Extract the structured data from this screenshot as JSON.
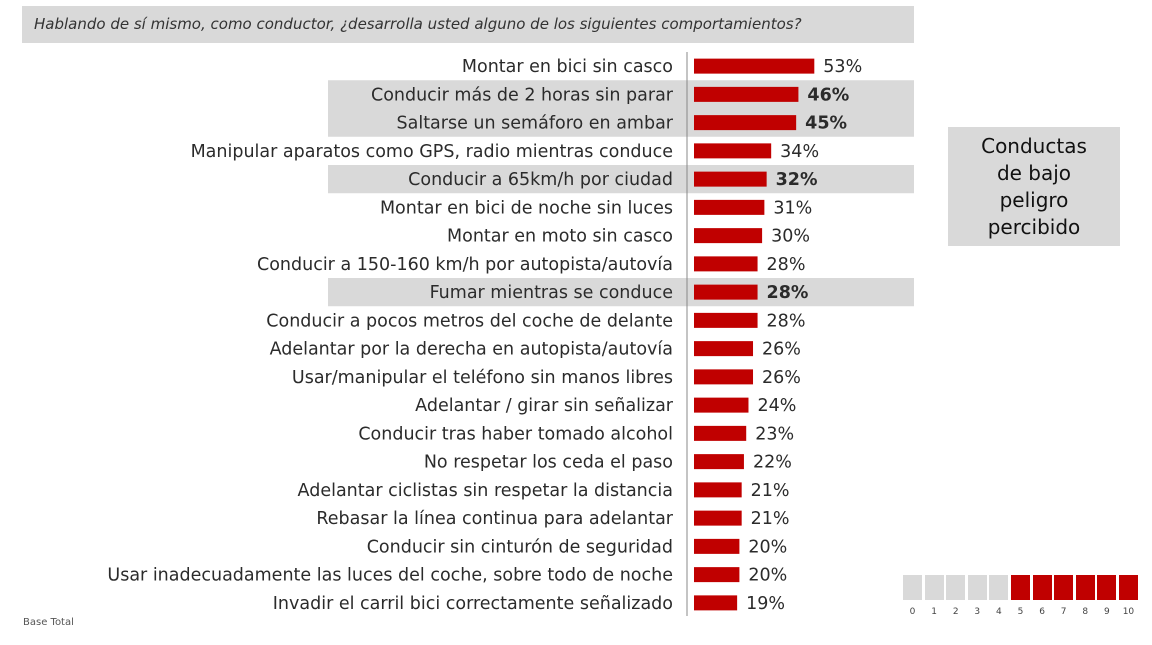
{
  "question": "Hablando de sí mismo, como conductor, ¿desarrolla usted alguno de los siguientes comportamientos?",
  "note_box": "Conductas de bajo peligro percibido",
  "base_note": "Base Total",
  "colors": {
    "bar": "#c00000",
    "highlight_bg": "#d9d9d9",
    "scale_on": "#c00000",
    "scale_off": "#d9d9d9"
  },
  "chart_data": {
    "type": "bar",
    "orientation": "horizontal",
    "unit": "%",
    "categories": [
      "Montar en bici sin casco",
      "Conducir más de 2 horas sin parar",
      "Saltarse un semáforo en ambar",
      "Manipular aparatos como GPS, radio mientras conduce",
      "Conducir a 65km/h por ciudad",
      "Montar en bici de noche sin luces",
      "Montar en moto sin casco",
      "Conducir a 150-160 km/h por autopista/autovía",
      "Fumar mientras se conduce",
      "Conducir a pocos metros del coche de delante",
      "Adelantar por la derecha en autopista/autovía",
      "Usar/manipular el teléfono sin manos libres",
      "Adelantar / girar sin señalizar",
      "Conducir tras haber tomado alcohol",
      "No respetar los ceda el paso",
      "Adelantar ciclistas sin respetar la distancia",
      "Rebasar la línea continua para adelantar",
      "Conducir sin cinturón de seguridad",
      "Usar inadecuadamente  las luces del coche, sobre todo de noche",
      "Invadir el carril bici correctamente señalizado"
    ],
    "values": [
      53,
      46,
      45,
      34,
      32,
      31,
      30,
      28,
      28,
      28,
      26,
      26,
      24,
      23,
      22,
      21,
      21,
      20,
      20,
      19
    ],
    "labels": [
      "53%",
      "46%",
      "45%",
      "34%",
      "32%",
      "31%",
      "30%",
      "28%",
      "28%",
      "28%",
      "26%",
      "26%",
      "24%",
      "23%",
      "22%",
      "21%",
      "21%",
      "20%",
      "20%",
      "19%"
    ],
    "highlighted": [
      false,
      true,
      true,
      false,
      true,
      false,
      false,
      false,
      true,
      false,
      false,
      false,
      false,
      false,
      false,
      false,
      false,
      false,
      false,
      false
    ],
    "xlim": [
      0,
      100
    ],
    "grid": false,
    "legend": "none"
  },
  "scale": {
    "labels": [
      "0",
      "1",
      "2",
      "3",
      "4",
      "5",
      "6",
      "7",
      "8",
      "9",
      "10"
    ],
    "filled_from": 5
  }
}
